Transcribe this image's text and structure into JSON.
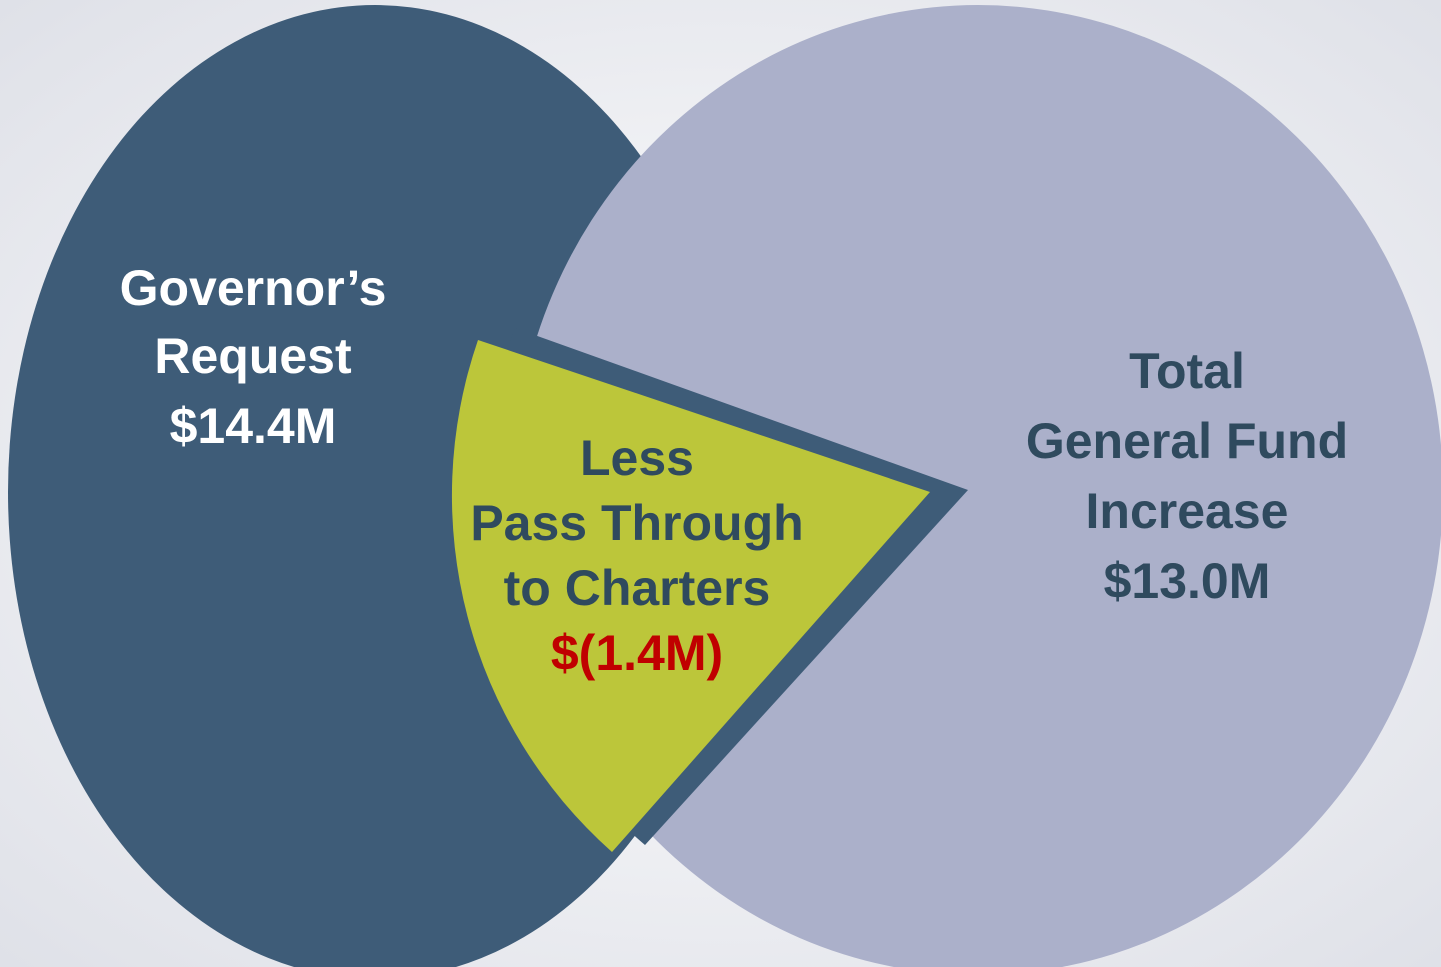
{
  "left": {
    "lines": [
      "Governor’s",
      "Request"
    ],
    "amount": "$14.4M"
  },
  "middle": {
    "lines": [
      "Less",
      "Pass Through",
      "to Charters"
    ],
    "amount": "$(1.4M)"
  },
  "right": {
    "lines": [
      "Total",
      "General Fund",
      "Increase"
    ],
    "amount": "$13.0M"
  }
}
